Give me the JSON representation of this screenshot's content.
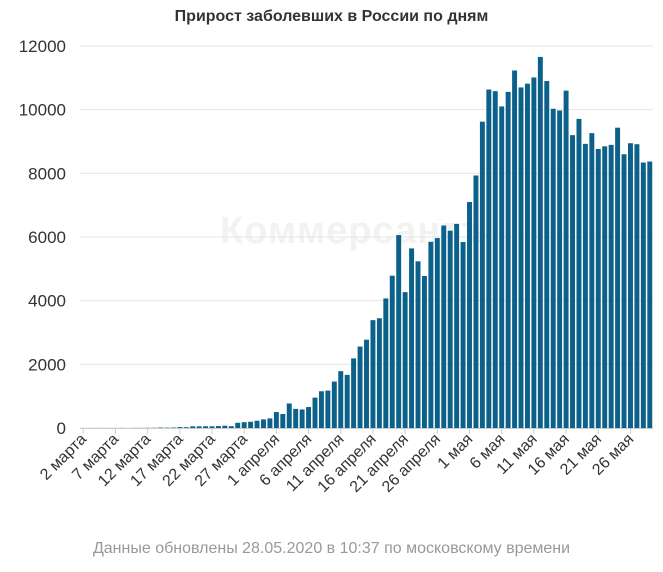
{
  "watermark": "Коммерсантъ",
  "footer": "Данные обновлены 28.05.2020 в 10:37 по московскому времени",
  "colors": {
    "bar": "#0b6189",
    "grid": "#e6e6e6",
    "axis_text": "#333333"
  },
  "chart_data": {
    "type": "bar",
    "title": "Прирост заболевших в России по дням",
    "xlabel": "",
    "ylabel": "",
    "ylim": [
      0,
      12000
    ],
    "yticks": [
      0,
      2000,
      4000,
      6000,
      8000,
      10000,
      12000
    ],
    "grid": true,
    "legend": "none",
    "tick_labels": [
      "2 марта",
      "7 марта",
      "12 марта",
      "17 марта",
      "22 марта",
      "27 марта",
      "1 апреля",
      "6 апреля",
      "11 апреля",
      "16 апреля",
      "21 апреля",
      "26 апреля",
      "1 мая",
      "6 мая",
      "11 мая",
      "16 мая",
      "21 мая",
      "26 мая"
    ],
    "tick_every": 5,
    "values": [
      1,
      0,
      1,
      1,
      1,
      1,
      3,
      0,
      3,
      3,
      6,
      6,
      14,
      11,
      14,
      29,
      25,
      52,
      52,
      54,
      53,
      61,
      71,
      57,
      163,
      182,
      196,
      228,
      270,
      302,
      501,
      440,
      771,
      601,
      582,
      658,
      954,
      1154,
      1175,
      1459,
      1786,
      1667,
      2186,
      2558,
      2774,
      3388,
      3448,
      4070,
      4785,
      6060,
      4268,
      5642,
      5236,
      4774,
      5849,
      5966,
      6361,
      6198,
      6411,
      5841,
      7099,
      7933,
      9623,
      10633,
      10581,
      10102,
      10559,
      11231,
      10699,
      10817,
      11012,
      11656,
      10899,
      10028,
      9974,
      10598,
      9200,
      9709,
      8926,
      9263,
      8764,
      8849,
      8894,
      9434,
      8599,
      8946,
      8915,
      8338,
      8371
    ]
  }
}
